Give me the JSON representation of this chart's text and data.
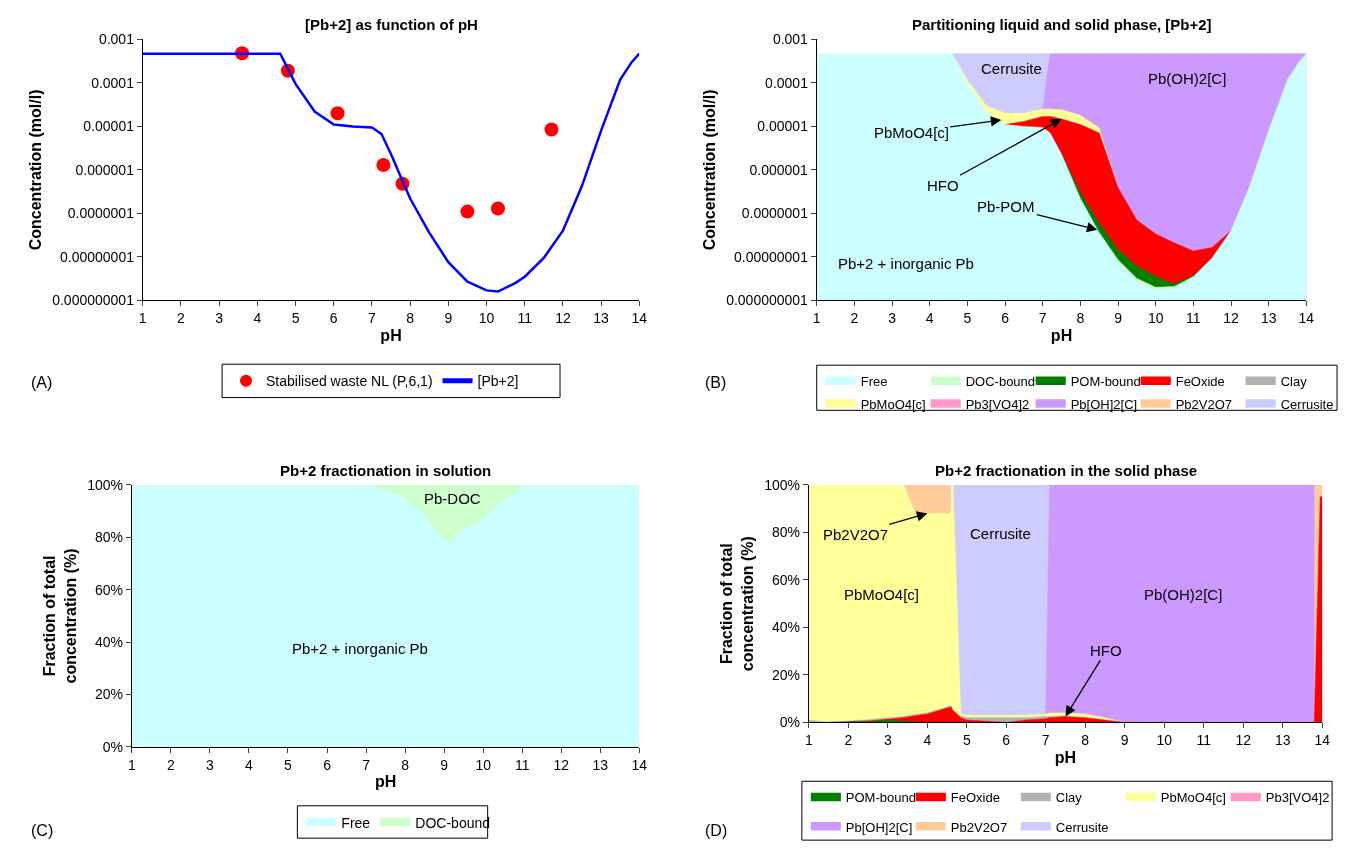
{
  "chart_data": [
    {
      "type": "line",
      "title": "[Pb+2] as function of pH",
      "xlabel": "pH",
      "ylabel": "Concentration (mol/l)",
      "log": "y",
      "legend": "bottom",
      "xlim": [
        1,
        14
      ],
      "xticks": [
        1,
        2,
        3,
        4,
        5,
        6,
        7,
        8,
        9,
        10,
        11,
        12,
        13,
        14
      ],
      "ylim": [
        1e-09,
        0.001
      ],
      "yticks": [
        {
          "value": 0.001,
          "label": "0.001"
        },
        {
          "value": 0.0001,
          "label": "0.0001"
        },
        {
          "value": 1e-05,
          "label": "0.00001"
        },
        {
          "value": 1e-06,
          "label": "0.000001"
        },
        {
          "value": 1e-07,
          "label": "0.0000001"
        },
        {
          "value": 1e-08,
          "label": "0.00000001"
        },
        {
          "value": 1e-09,
          "label": "0.000000001"
        }
      ],
      "series": [
        {
          "name": "Stabilised waste NL (P,6,1)",
          "type": "scatter",
          "marker": "circle",
          "color": "#ff0000",
          "x": [
            3.6,
            4.8,
            6.1,
            7.3,
            7.8,
            9.5,
            10.3,
            11.7
          ],
          "values": [
            0.00048,
            0.00019,
            2e-05,
            1.3e-06,
            4.8e-07,
            1.1e-07,
            1.3e-07,
            8.5e-06
          ]
        },
        {
          "name": "[Pb+2]",
          "type": "line",
          "color": "#0000ff",
          "x": [
            1,
            2,
            3,
            4,
            4.6,
            5,
            5.5,
            6,
            6.5,
            7,
            7.25,
            7.5,
            8,
            8.5,
            9,
            9.5,
            10,
            10.3,
            10.75,
            11,
            11.5,
            12,
            12.5,
            13,
            13.5,
            13.8,
            14
          ],
          "values": [
            0.00047,
            0.00047,
            0.00047,
            0.00047,
            0.00047,
            9.5e-05,
            2.2e-05,
            1.1e-05,
            1e-05,
            9.5e-06,
            6.7e-06,
            2.3e-06,
            2.2e-07,
            3.6e-08,
            7.6e-09,
            2.7e-09,
            1.7e-09,
            1.6e-09,
            2.5e-09,
            3.5e-09,
            9.5e-09,
            4e-08,
            4.3e-07,
            8e-06,
            0.00012,
            0.0003,
            0.00047
          ]
        }
      ],
      "annotations": [
        "(A)"
      ]
    },
    {
      "type": "area",
      "title": "Partitioning liquid and solid phase, [Pb+2]",
      "xlabel": "pH",
      "ylabel": "Concentration (mol/l)",
      "log": "y",
      "legend": "bottom",
      "xlim": [
        1,
        14
      ],
      "xticks": [
        1,
        2,
        3,
        4,
        5,
        6,
        7,
        8,
        9,
        10,
        11,
        12,
        13,
        14
      ],
      "ylim": [
        1e-09,
        0.001
      ],
      "yticks": [
        {
          "value": 0.001,
          "label": "0.001"
        },
        {
          "value": 0.0001,
          "label": "0.0001"
        },
        {
          "value": 1e-05,
          "label": "0.00001"
        },
        {
          "value": 1e-06,
          "label": "0.000001"
        },
        {
          "value": 1e-07,
          "label": "0.0000001"
        },
        {
          "value": 1e-08,
          "label": "0.00000001"
        },
        {
          "value": 1e-09,
          "label": "0.000000001"
        }
      ],
      "x": [
        1,
        4.6,
        5,
        5.5,
        6,
        6.5,
        7,
        7.2,
        7.5,
        8,
        8.5,
        9,
        9.5,
        10,
        10.5,
        11,
        11.5,
        12,
        12.5,
        13,
        13.5,
        13.8,
        14
      ],
      "series": [
        {
          "name": "Free",
          "color": "#ccffff",
          "values": [
            0.00047,
            0.00047,
            9.5e-05,
            2.2e-05,
            1.1e-05,
            1e-05,
            9.5e-06,
            7e-06,
            2.3e-06,
            2.2e-07,
            3.6e-08,
            7.6e-09,
            2.7e-09,
            1.7e-09,
            1.9e-09,
            3.5e-09,
            9.5e-09,
            4e-08,
            4.3e-07,
            8e-06,
            0.00012,
            0.0003,
            0.00047
          ]
        },
        {
          "name": "DOC-bound",
          "color": "#ccffcc",
          "values": [
            null,
            null,
            null,
            null,
            null,
            null,
            null,
            null,
            null,
            null,
            3.6e-08,
            8.6e-09,
            3.2e-09,
            2e-09,
            2.1e-09,
            3.5e-09,
            null,
            null,
            null,
            null,
            null,
            null,
            null
          ]
        },
        {
          "name": "POM-bound",
          "color": "#008000",
          "values": [
            null,
            null,
            null,
            null,
            null,
            null,
            null,
            null,
            2.3e-06,
            3e-07,
            6e-08,
            1.46e-08,
            6.2e-09,
            3.5e-09,
            2.4e-09,
            3.7e-09,
            9.5e-09,
            null,
            null,
            null,
            null,
            null,
            null
          ]
        },
        {
          "name": "FeOxide",
          "color": "#ff0000",
          "values": [
            null,
            null,
            null,
            null,
            1.1e-05,
            1.3e-05,
            1.7e-05,
            1.7e-05,
            1.48e-05,
            1.1e-05,
            7.1e-06,
            3.9e-07,
            7e-08,
            3.35e-08,
            2.1e-08,
            1.37e-08,
            1.65e-08,
            4e-08,
            null,
            null,
            null,
            null,
            null
          ]
        },
        {
          "name": "Clay",
          "color": "#b2b2b2",
          "values": [
            null,
            null,
            null,
            null,
            null,
            null,
            null,
            null,
            null,
            null,
            null,
            null,
            null,
            null,
            null,
            null,
            null,
            null,
            null,
            null,
            null,
            null,
            null
          ]
        },
        {
          "name": "PbMoO4[c]",
          "color": "#ffff99",
          "values": [
            null,
            0.00047,
            0.000115,
            3e-05,
            2e-05,
            2e-05,
            2.5e-05,
            2.5e-05,
            2.4e-05,
            1.8e-05,
            9.1e-06,
            3.9e-07,
            null,
            null,
            null,
            null,
            null,
            null,
            null,
            null,
            null,
            null,
            null
          ]
        },
        {
          "name": "Pb3[VO4]2",
          "color": "#ff99cc",
          "values": [
            null,
            null,
            null,
            null,
            null,
            null,
            null,
            null,
            null,
            1.8e-05,
            9.6e-06,
            3.9e-07,
            null,
            null,
            null,
            null,
            null,
            null,
            null,
            null,
            null,
            null,
            null
          ]
        },
        {
          "name": "Pb[OH]2[C]",
          "color": "#cc99ff",
          "values": [
            null,
            null,
            null,
            null,
            null,
            null,
            2.5e-05,
            0.00047,
            0.00047,
            0.00047,
            0.00047,
            0.00047,
            0.00047,
            0.00047,
            0.00047,
            0.00047,
            0.00047,
            0.00047,
            0.00047,
            0.00047,
            0.00047,
            0.00047,
            0.00047
          ]
        },
        {
          "name": "Pb2V2O7",
          "color": "#ffcc99",
          "values": [
            null,
            null,
            null,
            null,
            null,
            null,
            null,
            null,
            null,
            null,
            null,
            null,
            null,
            null,
            null,
            null,
            null,
            null,
            null,
            null,
            null,
            null,
            null
          ]
        },
        {
          "name": "Cerrusite",
          "color": "#ccccff",
          "values": [
            null,
            0.00047,
            0.00047,
            0.00047,
            0.00047,
            0.00047,
            0.00047,
            0.00047,
            null,
            null,
            null,
            null,
            null,
            null,
            null,
            null,
            null,
            null,
            null,
            null,
            null,
            null,
            null
          ]
        }
      ],
      "annotations": [
        "Cerrusite",
        "Pb(OH)2[C]",
        {
          "text": "PbMoO4[c]",
          "x": 5.9,
          "y": 1.4e-05
        },
        {
          "text": "HFO",
          "x": 7.5,
          "y": 1.48e-05
        },
        {
          "text": "Pb-POM",
          "x": 8.45,
          "y": 4.2e-08
        },
        "Pb+2 + inorganic Pb",
        "(B)"
      ]
    },
    {
      "type": "area",
      "stacked": true,
      "title": "Pb+2 fractionation in solution",
      "xlabel": "pH",
      "ylabel": "Fraction of total\nconcentration (%)",
      "legend": "bottom",
      "xlim": [
        1,
        14
      ],
      "xticks": [
        1,
        2,
        3,
        4,
        5,
        6,
        7,
        8,
        9,
        10,
        11,
        12,
        13,
        14
      ],
      "ylim": [
        0,
        100
      ],
      "yticks": [
        {
          "value": 0,
          "label": "0%"
        },
        {
          "value": 20,
          "label": "20%"
        },
        {
          "value": 40,
          "label": "40%"
        },
        {
          "value": 60,
          "label": "60%"
        },
        {
          "value": 80,
          "label": "80%"
        },
        {
          "value": 100,
          "label": "100%"
        }
      ],
      "x": [
        1,
        6.5,
        7,
        7.5,
        8,
        8.5,
        9,
        9.2,
        9.5,
        10,
        10.5,
        11,
        11.2,
        14
      ],
      "series": [
        {
          "name": "Free",
          "color": "#ccffff",
          "values": [
            100,
            100,
            99.7,
            98,
            95,
            88,
            79,
            78,
            83,
            87,
            94,
            99,
            100,
            100
          ]
        },
        {
          "name": "DOC-bound",
          "color": "#ccffcc",
          "values": [
            0,
            0,
            0.3,
            2,
            5,
            12,
            21,
            22,
            17,
            13,
            6,
            1,
            0,
            0
          ]
        }
      ],
      "annotations": [
        "Pb-DOC",
        "Pb+2 + inorganic Pb",
        "(C)"
      ]
    },
    {
      "type": "area",
      "title": "Pb+2 fractionation in the solid phase",
      "xlabel": "pH",
      "ylabel": "Fraction of total\nconcentration (%)",
      "legend": "bottom",
      "xlim": [
        1,
        14
      ],
      "xticks": [
        1,
        2,
        3,
        4,
        5,
        6,
        7,
        8,
        9,
        10,
        11,
        12,
        13,
        14
      ],
      "ylim": [
        0,
        100
      ],
      "yticks": [
        {
          "value": 0,
          "label": "0%"
        },
        {
          "value": 20,
          "label": "20%"
        },
        {
          "value": 40,
          "label": "40%"
        },
        {
          "value": 60,
          "label": "60%"
        },
        {
          "value": 80,
          "label": "80%"
        },
        {
          "value": 100,
          "label": "100%"
        }
      ],
      "x": [
        1,
        1.5,
        2,
        2.5,
        3,
        3.4,
        3.7,
        4,
        4.6,
        4.65,
        4.85,
        5,
        6,
        6.5,
        7,
        7.1,
        7.5,
        8,
        8.5,
        9,
        13.8,
        13.95,
        14
      ],
      "series": [
        {
          "name": "POM-bound",
          "color": "#008000",
          "values": [
            null,
            0,
            0.3,
            0.3,
            1,
            0.5,
            0.3,
            0,
            null,
            null,
            null,
            null,
            null,
            null,
            null,
            null,
            null,
            null,
            null,
            null,
            null,
            null,
            null
          ]
        },
        {
          "name": "FeOxide",
          "color": "#ff0000",
          "values": [
            null,
            null,
            0.3,
            0.6,
            1.3,
            2,
            2.8,
            3.5,
            6.5,
            5,
            2,
            1,
            0,
            1,
            1.5,
            2,
            2.5,
            2,
            1,
            0,
            0,
            95,
            95
          ]
        },
        {
          "name": "Clay",
          "color": "#b2b2b2",
          "values": [
            1,
            0,
            0.6,
            1.1,
            1.8,
            2.5,
            3.3,
            4,
            7,
            5,
            2.5,
            2,
            2,
            2,
            2.5,
            2.5,
            2.5,
            null,
            null,
            null,
            null,
            null,
            null
          ]
        },
        {
          "name": "PbMoO4[c]",
          "color": "#ffff99",
          "values": [
            100,
            100,
            100,
            100,
            100,
            100,
            88,
            88,
            88,
            100,
            3.5,
            3,
            3,
            3,
            3.5,
            4,
            4,
            3.5,
            2,
            0,
            null,
            null,
            null
          ]
        },
        {
          "name": "Pb3[VO4]2",
          "color": "#ff99cc",
          "values": [
            null,
            null,
            null,
            null,
            null,
            null,
            null,
            null,
            null,
            null,
            null,
            null,
            null,
            null,
            null,
            null,
            null,
            null,
            null,
            null,
            null,
            null,
            null
          ]
        },
        {
          "name": "Pb[OH]2[C]",
          "color": "#cc99ff",
          "values": [
            null,
            null,
            null,
            null,
            null,
            null,
            null,
            null,
            null,
            null,
            null,
            null,
            null,
            null,
            3.5,
            100,
            100,
            100,
            100,
            100,
            100,
            null,
            null
          ]
        },
        {
          "name": "Pb2V2O7",
          "color": "#ffcc99",
          "values": [
            null,
            null,
            null,
            null,
            null,
            100,
            100,
            100,
            100,
            null,
            null,
            null,
            null,
            null,
            null,
            null,
            null,
            null,
            null,
            null,
            100,
            100,
            100
          ]
        },
        {
          "name": "Cerrusite",
          "color": "#ccccff",
          "values": [
            null,
            null,
            null,
            null,
            null,
            null,
            null,
            null,
            null,
            100,
            100,
            100,
            100,
            100,
            100,
            100,
            null,
            null,
            null,
            null,
            null,
            null,
            null
          ]
        }
      ],
      "annotations": [
        {
          "text": "Pb2V2O7",
          "x": 4,
          "y": 88
        },
        "Cerrusite",
        "PbMoO4[c]",
        "Pb(OH)2[C]",
        {
          "text": "HFO",
          "x": 7.5,
          "y": 2.5
        },
        "(D)"
      ]
    }
  ]
}
